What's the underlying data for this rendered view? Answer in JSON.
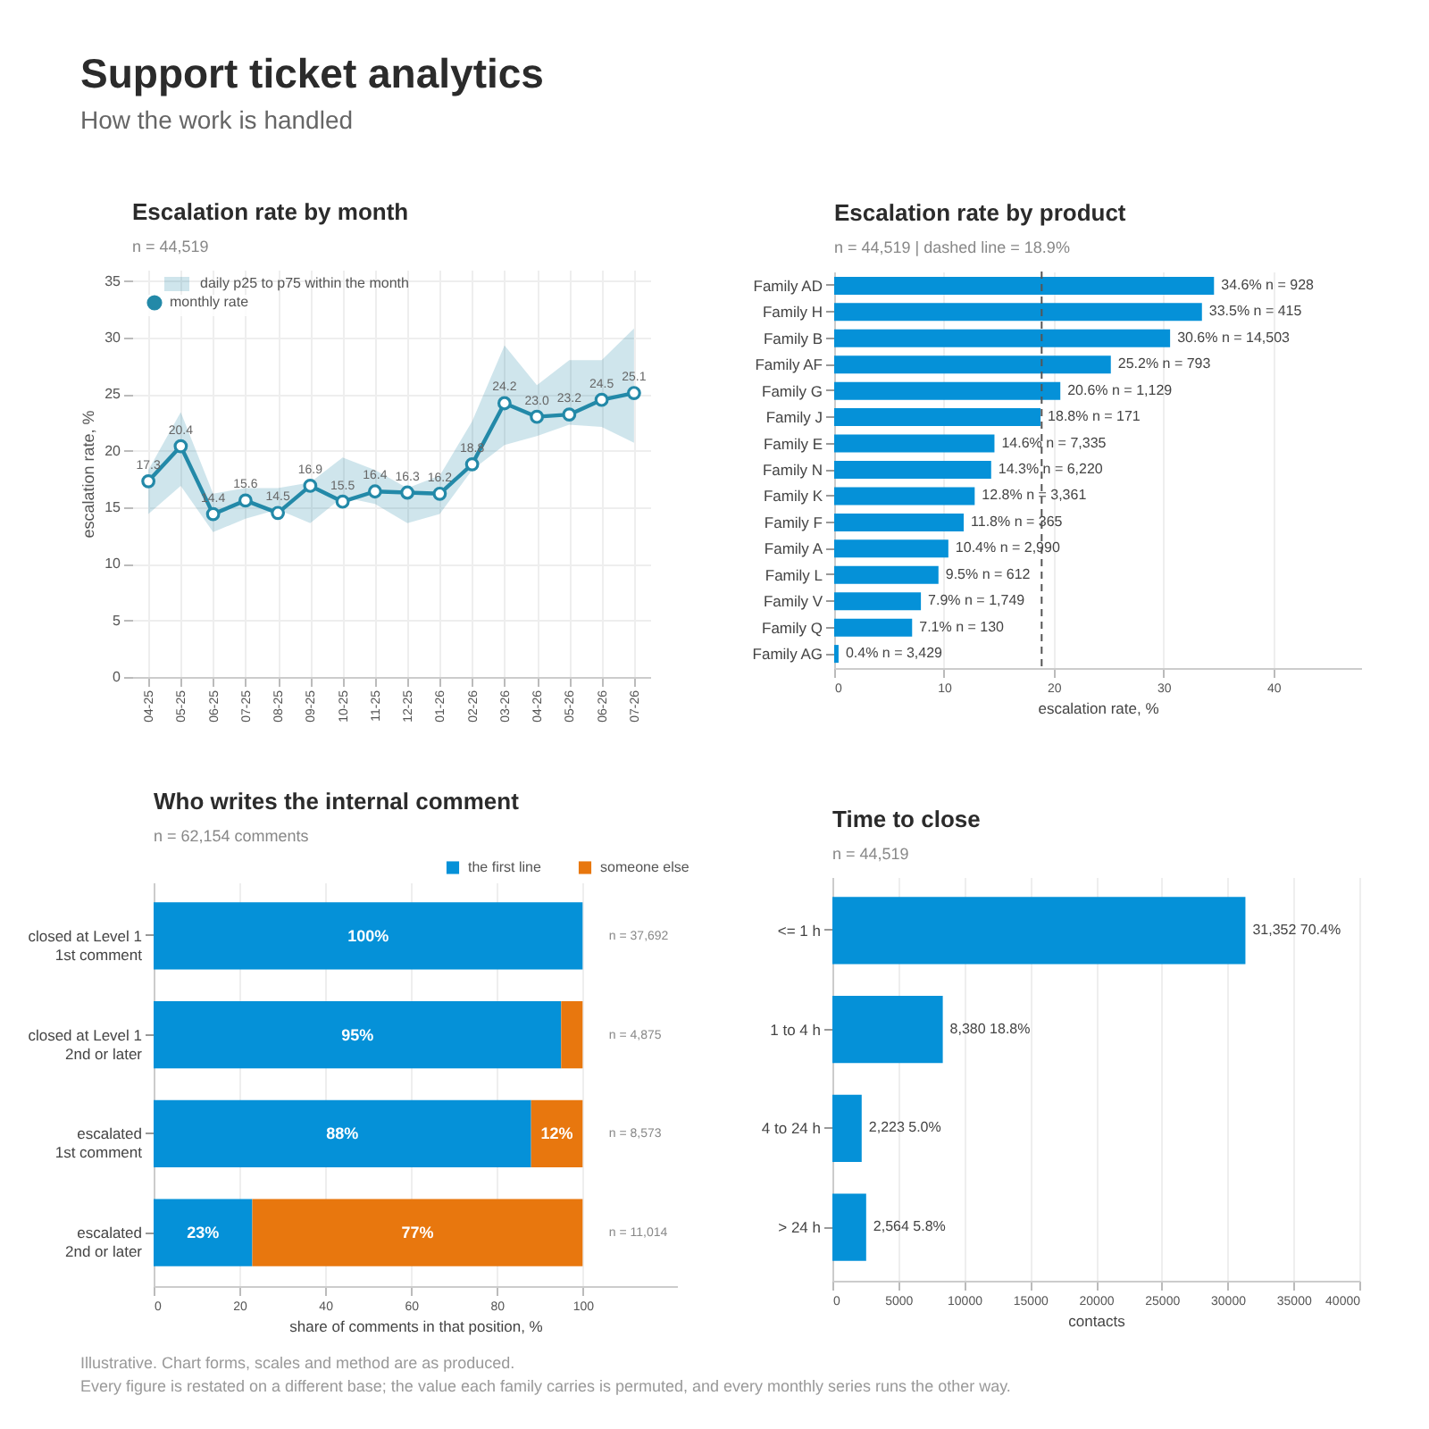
{
  "chart_data": [
    {
      "type": "other",
      "title": "Support ticket analytics",
      "subtitle": "How the work is handled",
      "annotations": [
        "Illustrative. Chart forms, scales and method are as produced.",
        "Every figure is restated on a different base; the value each family carries is permuted, and every monthly series runs the other way."
      ]
    },
    {
      "type": "line",
      "title": "Escalation rate by month",
      "subtitle": "n = 44,519",
      "ylabel": "escalation rate, %",
      "categories": [
        "04-25",
        "05-25",
        "06-25",
        "07-25",
        "08-25",
        "09-25",
        "10-25",
        "11-25",
        "12-25",
        "01-26",
        "02-26",
        "03-26",
        "04-26",
        "05-26",
        "06-26",
        "07-26"
      ],
      "series": [
        {
          "name": "monthly rate",
          "type": "line",
          "color": "#2389a8",
          "lower": [
            14.4,
            16.9,
            12.8,
            14.0,
            14.8,
            13.6,
            15.9,
            15.3,
            13.6,
            14.4,
            18.3,
            20.5,
            21.3,
            22.3,
            22.1,
            20.7
          ],
          "upper": [
            18.3,
            23.4,
            16.2,
            16.7,
            16.7,
            17.2,
            19.4,
            18.3,
            16.7,
            17.8,
            22.6,
            29.3,
            25.8,
            28.0,
            28.0,
            30.8
          ],
          "values": [
            17.3,
            20.4,
            14.4,
            15.6,
            14.5,
            16.9,
            15.5,
            16.4,
            16.3,
            16.2,
            18.8,
            24.2,
            23.0,
            23.2,
            24.5,
            25.1
          ],
          "value_labels": [
            "17.3",
            "20.4",
            "14.4",
            "15.6",
            "14.5",
            "16.9",
            "15.5",
            "16.4",
            "16.3",
            "16.2",
            "18.8",
            "24.2",
            "23.0",
            "23.2",
            "24.5",
            "25.1"
          ]
        }
      ],
      "annotations": [
        "daily p25 to p75 within the month"
      ],
      "ylim": [
        0,
        36
      ],
      "yticks": [
        0,
        5,
        10,
        15,
        20,
        25,
        30,
        35
      ],
      "grid": true,
      "legend": "top left",
      "marker": "circle",
      "line_style": "solid"
    },
    {
      "type": "bar",
      "orientation": "horizontal",
      "title": "Escalation rate by product",
      "subtitle": "n = 44,519 | dashed line = 18.9%",
      "xlabel": "escalation rate, %",
      "categories": [
        "Family AD",
        "Family H",
        "Family B",
        "Family AF",
        "Family G",
        "Family J",
        "Family E",
        "Family N",
        "Family K",
        "Family F",
        "Family A",
        "Family L",
        "Family V",
        "Family Q",
        "Family AG"
      ],
      "values": [
        34.6,
        33.5,
        30.6,
        25.2,
        20.6,
        18.8,
        14.6,
        14.3,
        12.8,
        11.8,
        10.4,
        9.5,
        7.9,
        7.1,
        0.4
      ],
      "color": "#0591d8",
      "value_labels": [
        "34.6% n = 928",
        "33.5% n = 415",
        "30.6% n = 14,503",
        "25.2% n = 793",
        "20.6% n = 1,129",
        "18.8% n = 171",
        "14.6% n = 7,335",
        "14.3% n = 6,220",
        "12.8% n = 3,361",
        "11.8% n = 365",
        "10.4% n = 2,990",
        "9.5% n = 612",
        "7.9% n = 1,749",
        "7.1% n = 130",
        "0.4% n = 3,429"
      ],
      "xlim": [
        0,
        48
      ],
      "xticks": [
        0,
        10,
        20,
        30,
        40
      ],
      "grid": "x",
      "ref_lines": [
        {
          "axis": "x",
          "value": 18.9,
          "line_style": "dashed",
          "color": "#555555"
        }
      ]
    },
    {
      "type": "bar",
      "orientation": "horizontal",
      "stacked": true,
      "title": "Who writes the internal comment",
      "subtitle": "n = 62,154 comments",
      "xlabel": "share of comments in that position, %",
      "categories": [
        "closed at Level 1\n1st comment",
        "closed at Level 1\n2nd or later",
        "escalated\n1st comment",
        "escalated\n2nd or later"
      ],
      "series": [
        {
          "name": "the first line",
          "color": "#0591d8",
          "values": [
            100,
            95,
            88,
            23
          ],
          "value_labels": [
            "100%",
            "95%",
            "88%",
            "23%"
          ]
        },
        {
          "name": "someone else",
          "color": "#e8770e",
          "values": [
            0,
            5,
            12,
            77
          ],
          "value_labels": [
            null,
            null,
            "12%",
            "77%"
          ]
        }
      ],
      "annotations": [
        "n = 37,692",
        "n = 4,875",
        "n = 8,573",
        "n = 11,014"
      ],
      "xlim": [
        0,
        122
      ],
      "xticks": [
        0,
        20,
        40,
        60,
        80,
        100
      ],
      "grid": "x",
      "legend": "top right"
    },
    {
      "type": "bar",
      "orientation": "horizontal",
      "title": "Time to close",
      "subtitle": "n = 44,519",
      "xlabel": "contacts",
      "categories": [
        "<= 1 h",
        "1 to 4 h",
        "4 to 24 h",
        "> 24 h"
      ],
      "values": [
        31352,
        8380,
        2223,
        2564
      ],
      "color": "#0591d8",
      "value_labels": [
        "31,352 70.4%",
        "8,380 18.8%",
        "2,223 5.0%",
        "2,564 5.8%"
      ],
      "xlim": [
        0,
        40000
      ],
      "xticks": [
        0,
        5000,
        10000,
        15000,
        20000,
        25000,
        30000,
        35000,
        40000
      ],
      "grid": "x"
    }
  ]
}
